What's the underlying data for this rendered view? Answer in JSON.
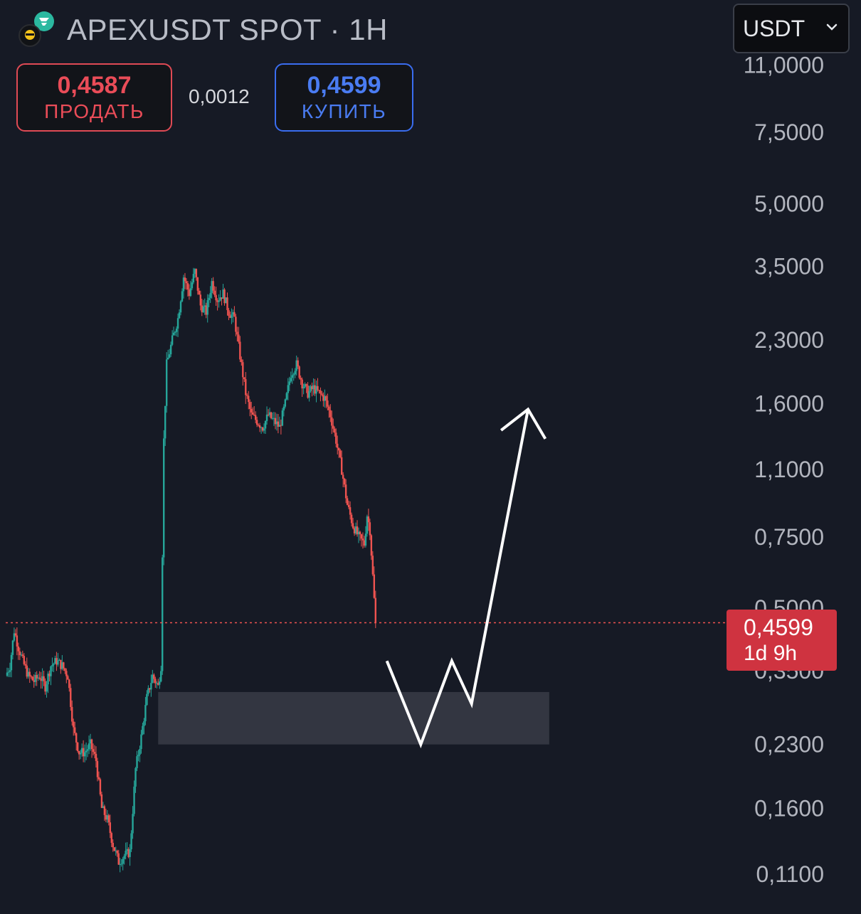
{
  "header": {
    "symbol": "APEXUSDT SPOT · 1H",
    "currency": "USDT"
  },
  "quote": {
    "sell_price": "0,4587",
    "sell_label": "ПРОДАТЬ",
    "spread": "0,0012",
    "buy_price": "0,4599",
    "buy_label": "КУПИТЬ"
  },
  "current_price": {
    "value": "0,4599",
    "timer": "1d 9h"
  },
  "colors": {
    "background": "#161a25",
    "up": "#26a69a",
    "down": "#ef5350",
    "axis_text": "#b2b5be",
    "zone": "#363a45",
    "arrow": "#ffffff",
    "sell": "#ea4c58",
    "buy": "#4a7cf2"
  },
  "icons": {
    "logo": "apex-logo-icon",
    "dropdown": "chevron-down-icon"
  },
  "chart_data": {
    "type": "candlestick",
    "scale": "log",
    "ylim": [
      0.095,
      12.5
    ],
    "y_ticks": [
      {
        "value": 11.0,
        "label": "11,0000"
      },
      {
        "value": 7.5,
        "label": "7,5000"
      },
      {
        "value": 5.0,
        "label": "5,0000"
      },
      {
        "value": 3.5,
        "label": "3,5000"
      },
      {
        "value": 2.3,
        "label": "2,3000"
      },
      {
        "value": 1.6,
        "label": "1,6000"
      },
      {
        "value": 1.1,
        "label": "1,1000"
      },
      {
        "value": 0.75,
        "label": "0,7500"
      },
      {
        "value": 0.5,
        "label": "0,5000"
      },
      {
        "value": 0.35,
        "label": "0,3500"
      },
      {
        "value": 0.23,
        "label": "0,2300"
      },
      {
        "value": 0.16,
        "label": "0,1600"
      },
      {
        "value": 0.11,
        "label": "0,1100"
      }
    ],
    "last_price": 0.4599,
    "price_path": [
      [
        0,
        0.34
      ],
      [
        3,
        0.36
      ],
      [
        6,
        0.44
      ],
      [
        9,
        0.4
      ],
      [
        12,
        0.37
      ],
      [
        16,
        0.34
      ],
      [
        20,
        0.33
      ],
      [
        24,
        0.34
      ],
      [
        28,
        0.32
      ],
      [
        32,
        0.36
      ],
      [
        36,
        0.37
      ],
      [
        40,
        0.36
      ],
      [
        44,
        0.34
      ],
      [
        48,
        0.25
      ],
      [
        52,
        0.22
      ],
      [
        56,
        0.22
      ],
      [
        60,
        0.23
      ],
      [
        64,
        0.21
      ],
      [
        68,
        0.16
      ],
      [
        72,
        0.15
      ],
      [
        76,
        0.13
      ],
      [
        80,
        0.118
      ],
      [
        84,
        0.122
      ],
      [
        88,
        0.125
      ],
      [
        92,
        0.2
      ],
      [
        96,
        0.24
      ],
      [
        100,
        0.3
      ],
      [
        104,
        0.34
      ],
      [
        108,
        0.32
      ],
      [
        110,
        0.36
      ],
      [
        112,
        1.3
      ],
      [
        114,
        2.0
      ],
      [
        118,
        2.3
      ],
      [
        122,
        2.6
      ],
      [
        126,
        3.3
      ],
      [
        130,
        3.0
      ],
      [
        134,
        3.4
      ],
      [
        138,
        2.8
      ],
      [
        142,
        2.7
      ],
      [
        146,
        3.2
      ],
      [
        150,
        2.9
      ],
      [
        154,
        3.0
      ],
      [
        158,
        2.7
      ],
      [
        162,
        2.6
      ],
      [
        166,
        2.1
      ],
      [
        170,
        1.7
      ],
      [
        174,
        1.5
      ],
      [
        178,
        1.45
      ],
      [
        182,
        1.4
      ],
      [
        186,
        1.5
      ],
      [
        190,
        1.45
      ],
      [
        194,
        1.4
      ],
      [
        198,
        1.6
      ],
      [
        202,
        1.9
      ],
      [
        206,
        2.0
      ],
      [
        210,
        1.8
      ],
      [
        214,
        1.7
      ],
      [
        218,
        1.75
      ],
      [
        222,
        1.7
      ],
      [
        226,
        1.65
      ],
      [
        230,
        1.5
      ],
      [
        234,
        1.3
      ],
      [
        238,
        1.1
      ],
      [
        242,
        0.9
      ],
      [
        246,
        0.8
      ],
      [
        250,
        0.75
      ],
      [
        254,
        0.72
      ],
      [
        256,
        0.85
      ],
      [
        258,
        0.78
      ],
      [
        260,
        0.6
      ],
      [
        262,
        0.4599
      ]
    ],
    "zone": {
      "x_start": 108,
      "x_end": 385,
      "y_low": 0.23,
      "y_high": 0.31
    },
    "projection": [
      [
        270,
        0.37
      ],
      [
        294,
        0.23
      ],
      [
        316,
        0.37
      ],
      [
        330,
        0.29
      ],
      [
        370,
        1.55
      ]
    ],
    "x_max": 500
  }
}
